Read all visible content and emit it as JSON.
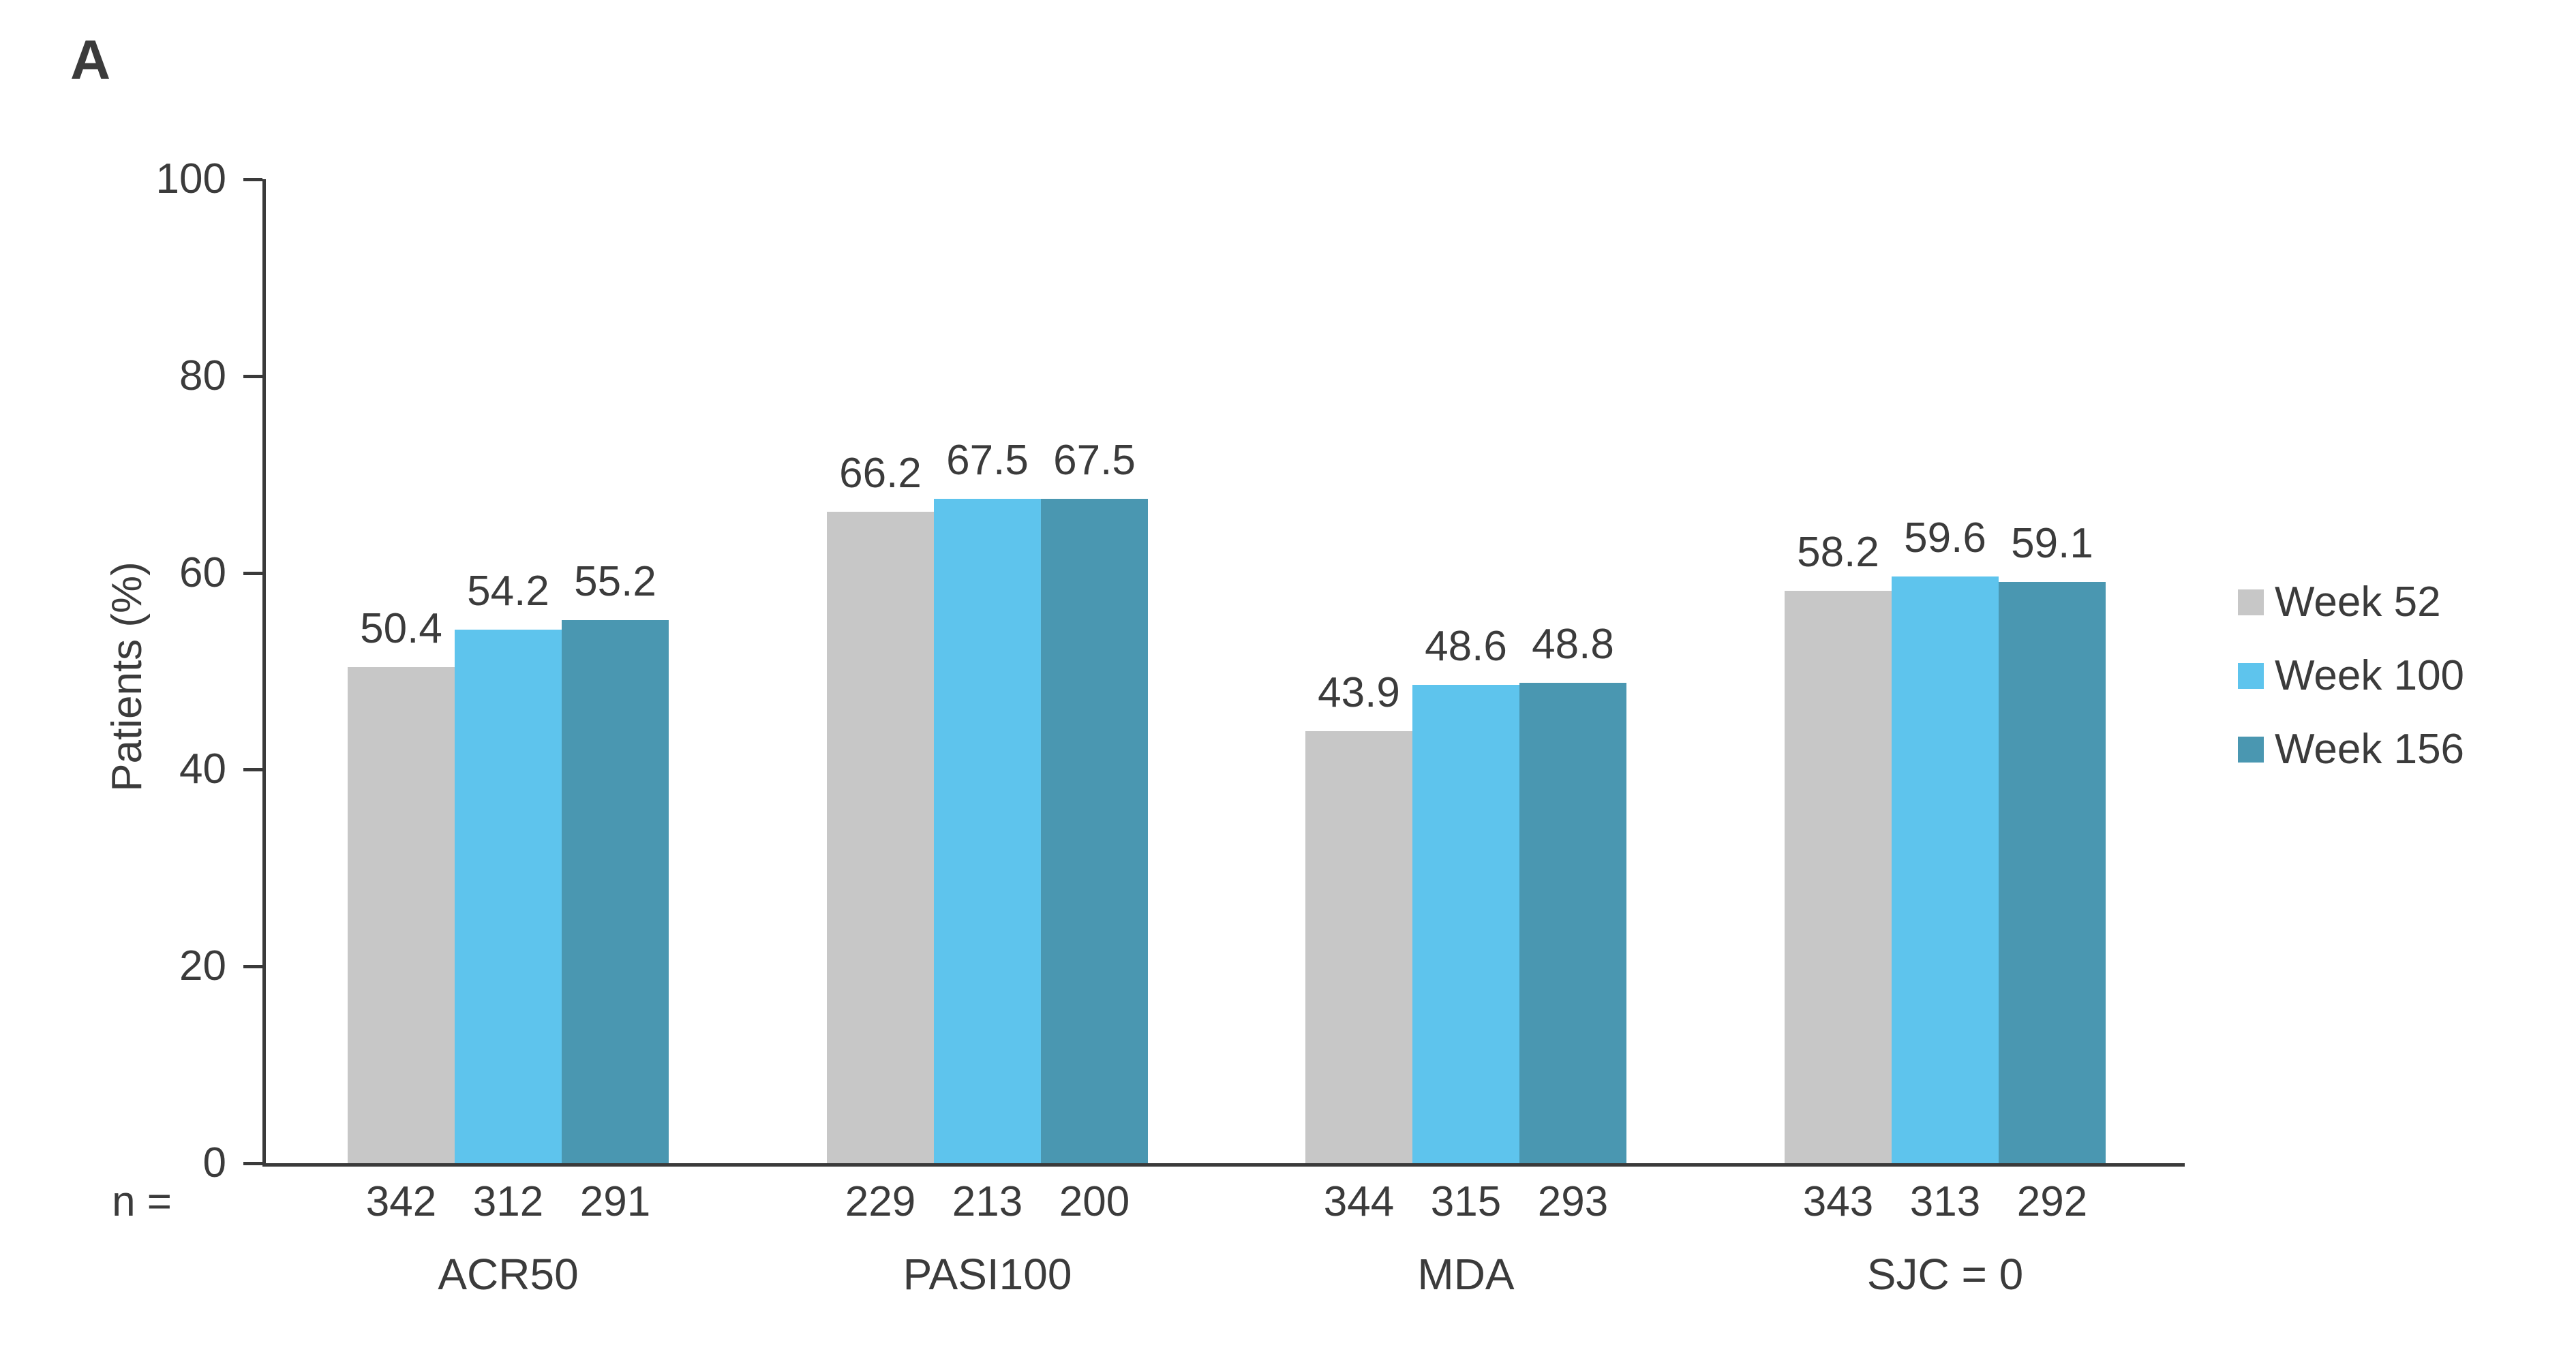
{
  "panel_label": "A",
  "colors": {
    "text": "#3b3b3b",
    "axis": "#3a3a3a",
    "week52": "#c7c7c7",
    "week100": "#5ec4ed",
    "week156": "#4a97b1"
  },
  "n_row_label": "n =",
  "chart_data": {
    "type": "bar",
    "title": "",
    "xlabel": "",
    "ylabel": "Patients (%)",
    "ylim": [
      0,
      100
    ],
    "yticks": [
      0,
      20,
      40,
      60,
      80,
      100
    ],
    "grid": false,
    "legend_position": "right",
    "categories": [
      "ACR50",
      "PASI100",
      "MDA",
      "SJC = 0"
    ],
    "series": [
      {
        "name": "Week 52",
        "color": "#c7c7c7",
        "values": [
          50.4,
          66.2,
          43.9,
          58.2
        ],
        "n": [
          342,
          229,
          344,
          343
        ]
      },
      {
        "name": "Week 100",
        "color": "#5ec4ed",
        "values": [
          54.2,
          67.5,
          48.6,
          59.6
        ],
        "n": [
          312,
          213,
          315,
          313
        ]
      },
      {
        "name": "Week 156",
        "color": "#4a97b1",
        "values": [
          55.2,
          67.5,
          48.8,
          59.1
        ],
        "n": [
          291,
          200,
          293,
          292
        ]
      }
    ]
  }
}
